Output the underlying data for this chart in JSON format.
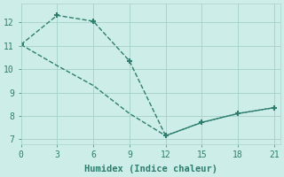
{
  "line1": {
    "x": [
      0,
      3,
      6,
      9,
      12,
      15,
      18,
      21
    ],
    "y": [
      11.05,
      12.3,
      12.05,
      10.35,
      7.15,
      7.72,
      8.1,
      8.35
    ],
    "color": "#2e7d6e",
    "marker": "+",
    "markersize": 5,
    "markeredgewidth": 1.5,
    "linestyle": "--",
    "linewidth": 1.0
  },
  "line2": {
    "x": [
      0,
      3,
      6,
      9,
      12,
      15,
      18,
      21
    ],
    "y": [
      11.05,
      10.15,
      9.3,
      8.1,
      7.15,
      7.72,
      8.1,
      8.35
    ],
    "color": "#2e7d6e",
    "marker": "",
    "markersize": 0,
    "linestyle": "--",
    "linewidth": 1.0
  },
  "xlabel": "Humidex (Indice chaleur)",
  "xlim": [
    0,
    21.5
  ],
  "ylim": [
    6.8,
    12.8
  ],
  "xticks": [
    0,
    3,
    6,
    9,
    12,
    15,
    18,
    21
  ],
  "yticks": [
    7,
    8,
    9,
    10,
    11,
    12
  ],
  "bg_color": "#cdeee8",
  "grid_color": "#aad4cc",
  "tick_color": "#2e7d6e"
}
